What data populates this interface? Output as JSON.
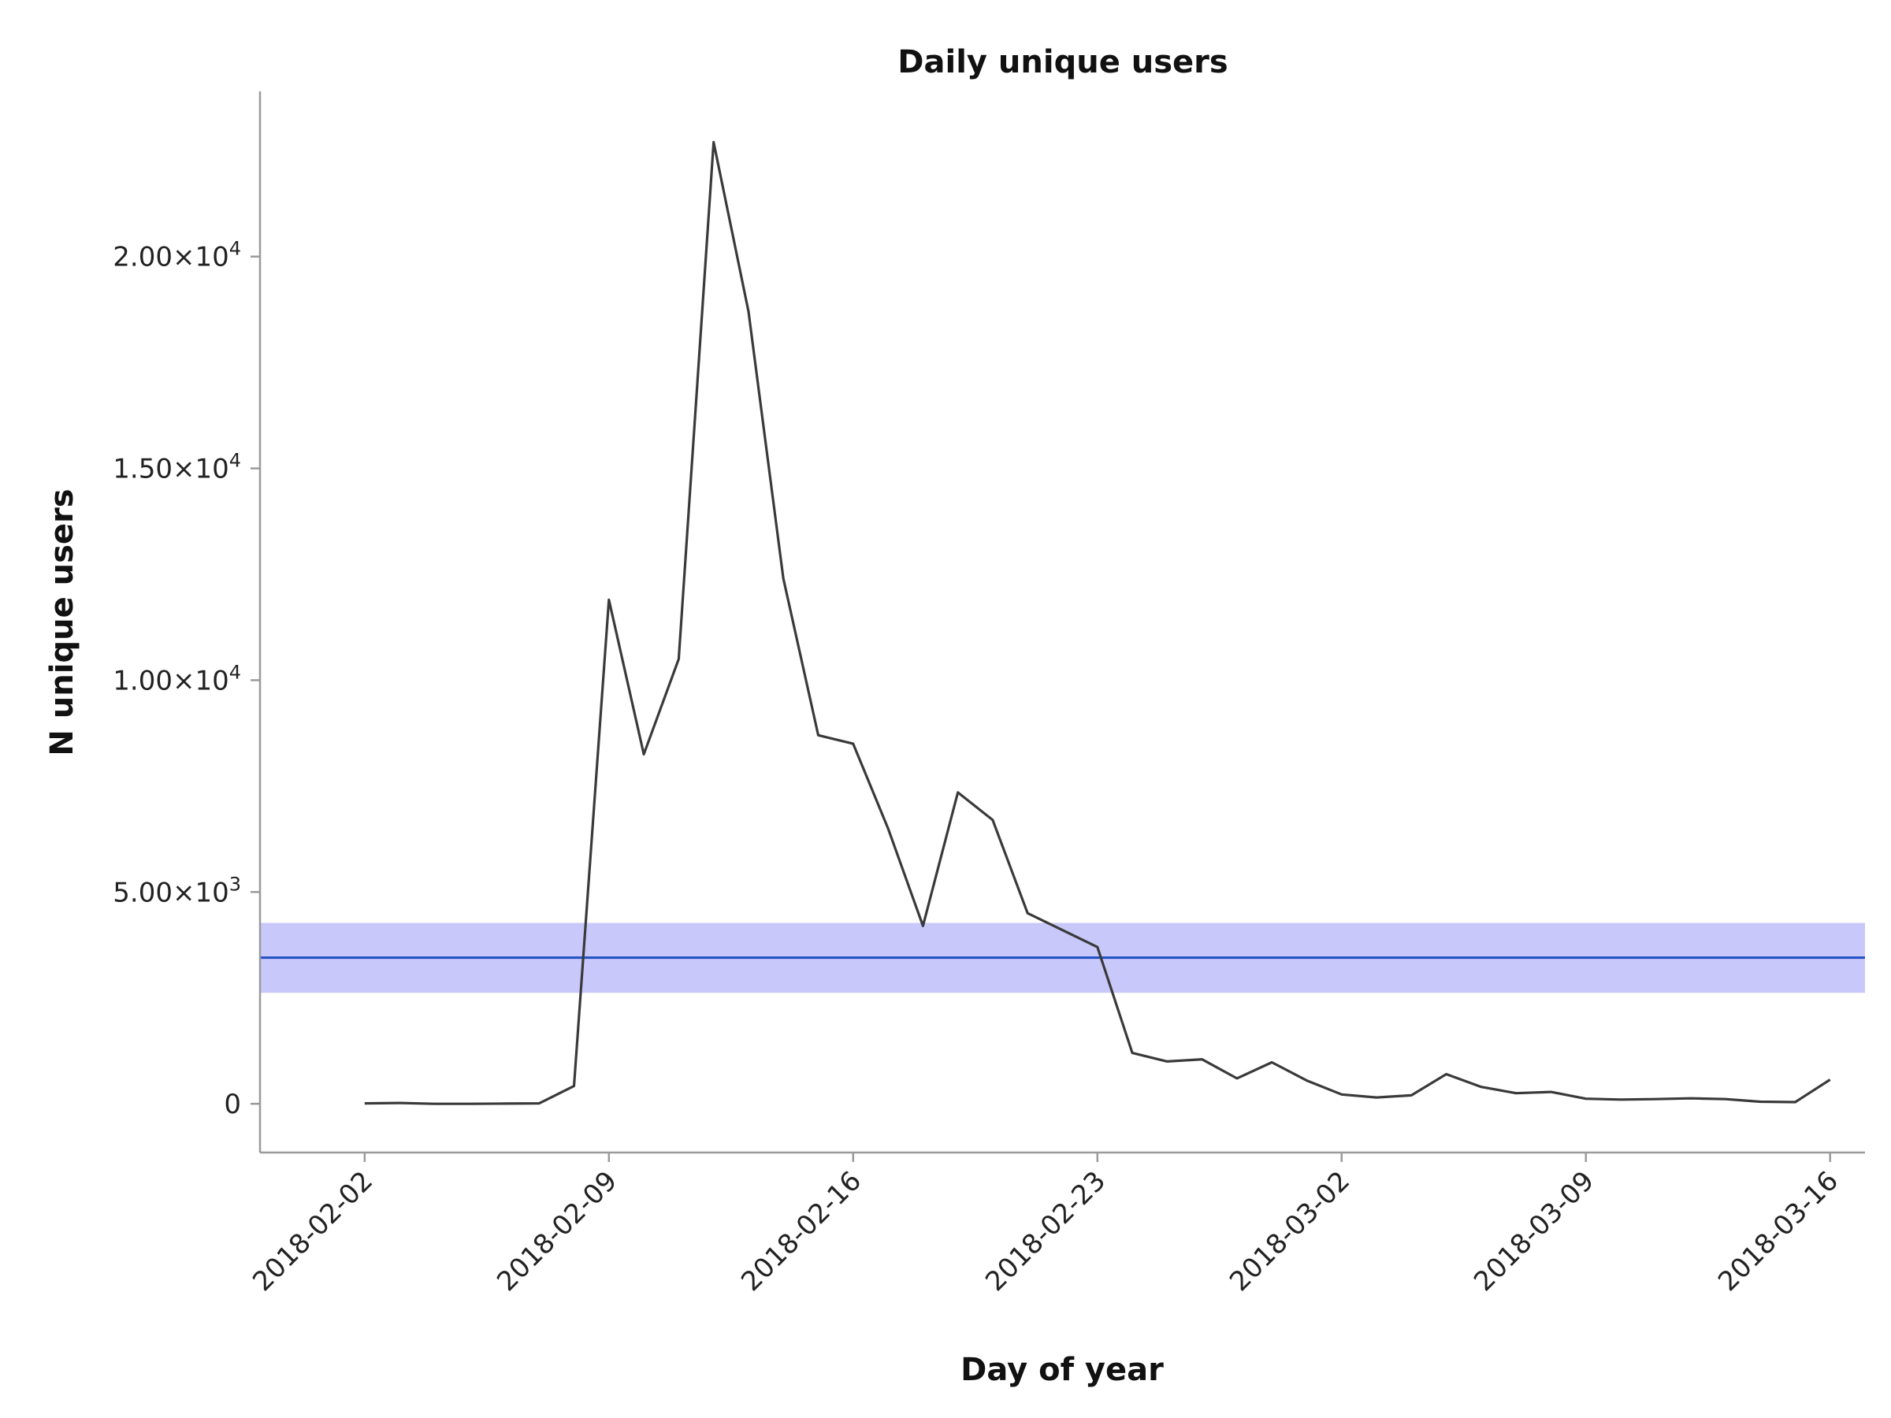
{
  "chart_data": {
    "type": "line",
    "title": "Daily unique users",
    "xlabel": "Day of year",
    "ylabel": "N unique users",
    "x_ticks": [
      "2018-02-02",
      "2018-02-09",
      "2018-02-16",
      "2018-02-23",
      "2018-03-02",
      "2018-03-09",
      "2018-03-16"
    ],
    "y_ticks": [
      {
        "value": 0,
        "mantissa": "0",
        "exp": ""
      },
      {
        "value": 5000,
        "mantissa": "5.00×10",
        "exp": "3"
      },
      {
        "value": 10000,
        "mantissa": "1.00×10",
        "exp": "4"
      },
      {
        "value": 15000,
        "mantissa": "1.50×10",
        "exp": "4"
      },
      {
        "value": 20000,
        "mantissa": "2.00×10",
        "exp": "4"
      }
    ],
    "xlim": [
      "2018-01-30",
      "2018-03-17"
    ],
    "ylim": [
      -1150,
      23900
    ],
    "grid": false,
    "series": [
      {
        "color": "#3a3a3a",
        "x": [
          "2018-02-02",
          "2018-02-03",
          "2018-02-04",
          "2018-02-05",
          "2018-02-06",
          "2018-02-07",
          "2018-02-08",
          "2018-02-09",
          "2018-02-10",
          "2018-02-11",
          "2018-02-12",
          "2018-02-13",
          "2018-02-14",
          "2018-02-15",
          "2018-02-16",
          "2018-02-17",
          "2018-02-18",
          "2018-02-19",
          "2018-02-20",
          "2018-02-21",
          "2018-02-22",
          "2018-02-23",
          "2018-02-24",
          "2018-02-25",
          "2018-02-26",
          "2018-02-27",
          "2018-02-28",
          "2018-03-01",
          "2018-03-02",
          "2018-03-03",
          "2018-03-04",
          "2018-03-05",
          "2018-03-06",
          "2018-03-07",
          "2018-03-08",
          "2018-03-09",
          "2018-03-10",
          "2018-03-11",
          "2018-03-12",
          "2018-03-13",
          "2018-03-14",
          "2018-03-15",
          "2018-03-16"
        ],
        "y": [
          10,
          20,
          0,
          0,
          5,
          10,
          420,
          11900,
          8250,
          10500,
          22700,
          18700,
          12400,
          8700,
          8500,
          6500,
          4200,
          7350,
          6700,
          4500,
          4100,
          3700,
          1200,
          1000,
          1050,
          600,
          980,
          550,
          220,
          150,
          200,
          700,
          400,
          250,
          280,
          120,
          100,
          110,
          130,
          110,
          50,
          40,
          570
        ]
      }
    ],
    "reference_band": {
      "center": 3450,
      "lower": 2620,
      "upper": 4270,
      "line_color": "#1f4fc2",
      "band_color": "#c9c8fb"
    }
  }
}
